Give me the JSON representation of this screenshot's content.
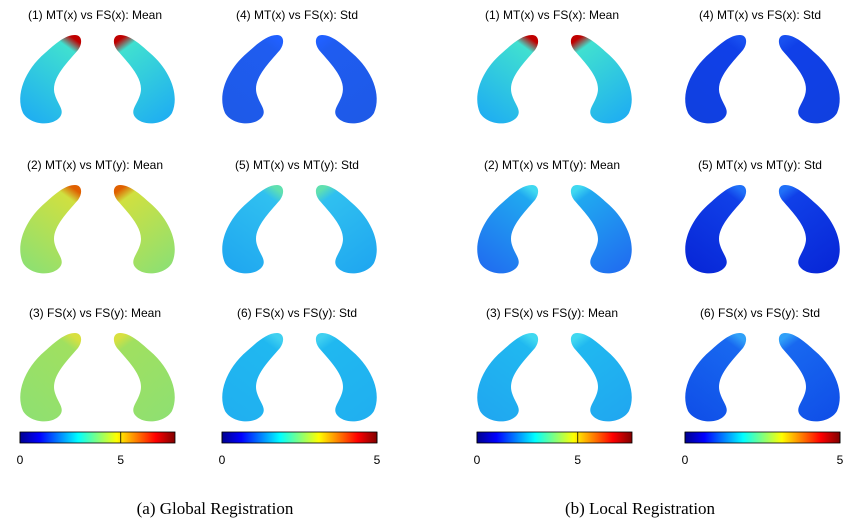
{
  "panels": [
    {
      "caption": "(a) Global Registration",
      "plots": [
        {
          "title": "(1) MT(x) vs FS(x): Mean"
        },
        {
          "title": "(4) MT(x) vs FS(x): Std"
        },
        {
          "title": "(2) MT(x) vs MT(y): Mean"
        },
        {
          "title": "(5) MT(x) vs MT(y): Std"
        },
        {
          "title": "(3) FS(x) vs FS(y): Mean"
        },
        {
          "title": "(6) FS(x) vs FS(y): Std"
        }
      ],
      "colorbars": [
        {
          "ticks": [
            0,
            5
          ]
        },
        {
          "ticks": [
            0,
            5
          ]
        }
      ]
    },
    {
      "caption": "(b) Local Registration",
      "plots": [
        {
          "title": "(1) MT(x) vs FS(x): Mean"
        },
        {
          "title": "(4) MT(x) vs FS(x): Std"
        },
        {
          "title": "(2) MT(x) vs MT(y): Mean"
        },
        {
          "title": "(5) MT(x) vs MT(y): Std"
        },
        {
          "title": "(3) FS(x) vs FS(y): Mean"
        },
        {
          "title": "(6) FS(x) vs FS(y): Std"
        }
      ],
      "colorbars": [
        {
          "ticks": [
            0,
            5
          ]
        },
        {
          "ticks": [
            0,
            5
          ]
        }
      ]
    }
  ]
}
